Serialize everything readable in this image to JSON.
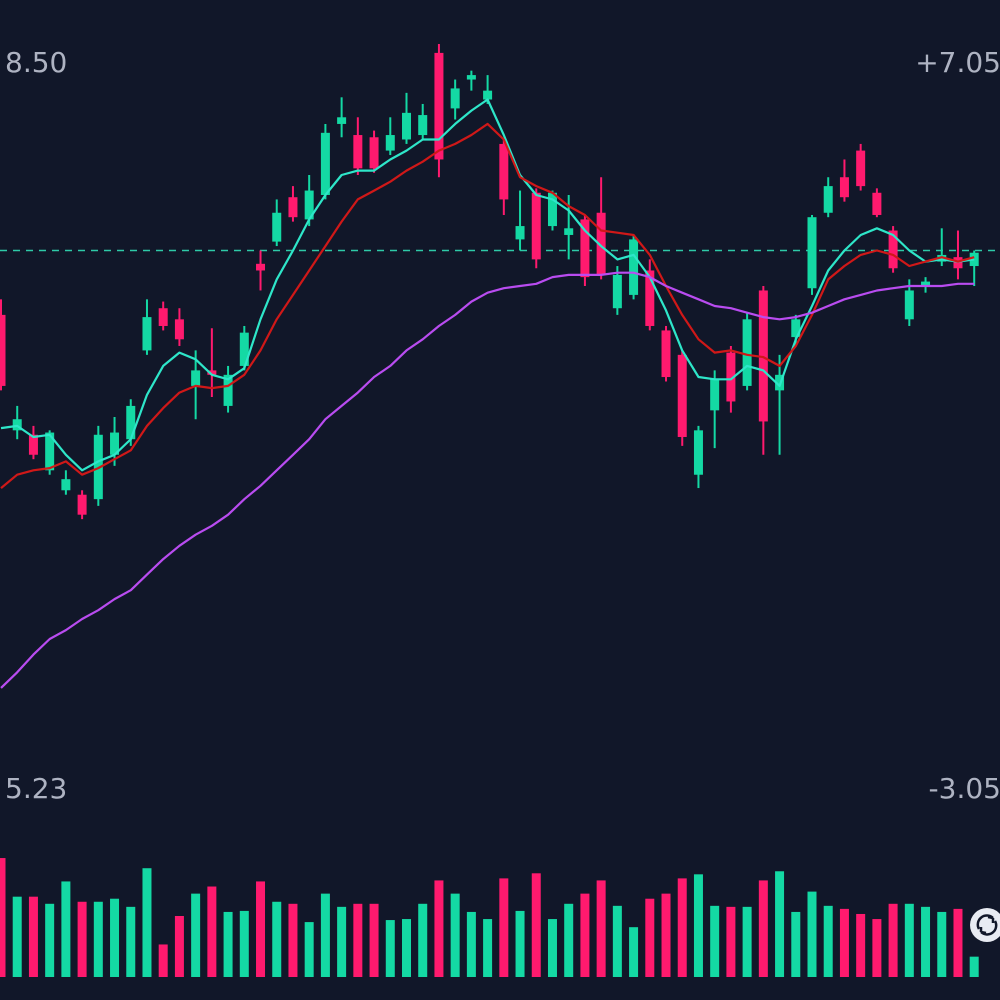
{
  "chart_data": {
    "type": "candlestick",
    "ylim": [
      5.23,
      8.5
    ],
    "yticks": [
      {
        "value": 8.5,
        "label": "8.50"
      },
      {
        "value": 5.23,
        "label": "5.23"
      }
    ],
    "y2lim": [
      -3.05,
      7.05
    ],
    "y2ticks": [
      {
        "value": 7.05,
        "label": "+7.05"
      },
      {
        "value": -3.05,
        "label": "-3.05"
      }
    ],
    "up_color": "#ff1a6e",
    "down_color": "#14d9a4",
    "open": [
      7.05,
      6.9,
      6.74,
      6.84,
      6.63,
      6.47,
      6.83,
      6.84,
      6.96,
      7.36,
      7.32,
      7.26,
      7.12,
      7.1,
      7.1,
      7.29,
      7.57,
      7.83,
      7.81,
      7.93,
      8.19,
      8.26,
      8.03,
      8.03,
      8.18,
      8.28,
      8.27,
      8.07,
      8.39,
      8.45,
      8.38,
      7.89,
      7.77,
      7.62,
      7.92,
      7.76,
      7.54,
      7.55,
      7.55,
      7.71,
      7.32,
      7.09,
      6.82,
      6.85,
      7.08,
      6.98,
      7.35,
      6.89,
      7.1,
      7.35,
      7.81,
      7.95,
      7.9,
      7.95,
      7.82,
      7.58,
      7.48,
      7.52,
      7.64,
      7.58,
      7.65
    ],
    "high": [
      7.44,
      6.96,
      6.87,
      6.85,
      6.67,
      6.58,
      6.87,
      6.91,
      6.99,
      7.44,
      7.43,
      7.4,
      7.21,
      7.31,
      7.14,
      7.32,
      7.66,
      7.89,
      7.95,
      8.0,
      8.23,
      8.35,
      8.26,
      8.2,
      8.26,
      8.37,
      8.32,
      8.59,
      8.43,
      8.47,
      8.45,
      8.16,
      7.93,
      7.94,
      7.93,
      7.91,
      7.82,
      7.99,
      7.59,
      7.73,
      7.62,
      7.32,
      7.21,
      6.87,
      7.12,
      7.23,
      7.38,
      7.5,
      7.19,
      7.37,
      7.82,
      7.99,
      8.07,
      8.14,
      7.94,
      7.77,
      7.53,
      7.54,
      7.76,
      7.75,
      7.66
    ],
    "low": [
      7.03,
      6.81,
      6.72,
      6.65,
      6.56,
      6.45,
      6.51,
      6.69,
      6.78,
      7.19,
      7.3,
      7.23,
      6.9,
      7.0,
      6.93,
      7.12,
      7.48,
      7.68,
      7.79,
      7.77,
      7.89,
      8.17,
      8.0,
      8.01,
      8.09,
      8.14,
      8.16,
      7.99,
      8.25,
      8.38,
      8.32,
      7.82,
      7.66,
      7.58,
      7.75,
      7.62,
      7.5,
      7.53,
      7.37,
      7.44,
      7.3,
      7.07,
      6.78,
      6.59,
      6.77,
      6.93,
      7.03,
      6.74,
      6.74,
      7.23,
      7.46,
      7.81,
      7.88,
      7.93,
      7.81,
      7.56,
      7.32,
      7.47,
      7.59,
      7.53,
      7.5
    ],
    "close": [
      7.37,
      6.85,
      6.83,
      6.67,
      6.58,
      6.56,
      6.54,
      6.74,
      6.81,
      7.21,
      7.4,
      7.35,
      7.05,
      7.12,
      6.96,
      7.14,
      7.6,
      7.7,
      7.9,
      7.8,
      7.91,
      8.23,
      8.18,
      8.17,
      8.11,
      8.16,
      8.18,
      8.55,
      8.3,
      8.43,
      8.34,
      8.14,
      7.71,
      7.92,
      7.77,
      7.73,
      7.8,
      7.83,
      7.4,
      7.46,
      7.57,
      7.3,
      7.19,
      6.65,
      6.94,
      7.2,
      7.05,
      7.48,
      7.03,
      7.27,
      7.49,
      7.83,
      7.99,
      8.11,
      7.92,
      7.75,
      7.35,
      7.5,
      7.61,
      7.63,
      7.59
    ],
    "moving_averages": [
      {
        "color": "#2ee6c9",
        "values": [
          6.86,
          6.87,
          6.82,
          6.83,
          6.74,
          6.67,
          6.71,
          6.74,
          6.81,
          7.01,
          7.14,
          7.2,
          7.17,
          7.1,
          7.08,
          7.13,
          7.35,
          7.53,
          7.66,
          7.8,
          7.91,
          8.0,
          8.02,
          8.02,
          8.07,
          8.11,
          8.16,
          8.16,
          8.23,
          8.29,
          8.34,
          8.18,
          8.0,
          7.91,
          7.89,
          7.84,
          7.75,
          7.68,
          7.62,
          7.64,
          7.54,
          7.39,
          7.21,
          7.09,
          7.08,
          7.08,
          7.14,
          7.12,
          7.05,
          7.26,
          7.41,
          7.57,
          7.66,
          7.73,
          7.76,
          7.73,
          7.66,
          7.61,
          7.62,
          7.61,
          7.62
        ]
      },
      {
        "color": "#d01818",
        "values": [
          6.59,
          6.65,
          6.67,
          6.68,
          6.71,
          6.65,
          6.68,
          6.72,
          6.76,
          6.87,
          6.95,
          7.02,
          7.05,
          7.04,
          7.05,
          7.1,
          7.21,
          7.35,
          7.46,
          7.57,
          7.68,
          7.79,
          7.89,
          7.93,
          7.97,
          8.02,
          8.06,
          8.11,
          8.14,
          8.18,
          8.23,
          8.16,
          7.99,
          7.95,
          7.92,
          7.86,
          7.82,
          7.75,
          7.74,
          7.73,
          7.64,
          7.5,
          7.37,
          7.26,
          7.2,
          7.21,
          7.19,
          7.18,
          7.14,
          7.23,
          7.37,
          7.53,
          7.59,
          7.64,
          7.66,
          7.64,
          7.59,
          7.61,
          7.63,
          7.61,
          7.63
        ]
      },
      {
        "color": "#b94cf0",
        "values": [
          5.69,
          5.76,
          5.84,
          5.91,
          5.95,
          6.0,
          6.04,
          6.09,
          6.13,
          6.2,
          6.27,
          6.33,
          6.38,
          6.42,
          6.47,
          6.54,
          6.6,
          6.67,
          6.74,
          6.81,
          6.9,
          6.96,
          7.02,
          7.09,
          7.14,
          7.21,
          7.26,
          7.32,
          7.37,
          7.43,
          7.47,
          7.49,
          7.5,
          7.51,
          7.54,
          7.55,
          7.55,
          7.55,
          7.56,
          7.56,
          7.54,
          7.5,
          7.47,
          7.44,
          7.41,
          7.4,
          7.38,
          7.36,
          7.35,
          7.36,
          7.38,
          7.41,
          7.44,
          7.46,
          7.48,
          7.49,
          7.5,
          7.5,
          7.5,
          7.51,
          7.51
        ]
      }
    ],
    "reference_line": 7.66,
    "volume": [
      117,
      79,
      79,
      72,
      94,
      74,
      74,
      77,
      69,
      107,
      32,
      60,
      82,
      89,
      64,
      65,
      94,
      74,
      72,
      54,
      82,
      69,
      72,
      72,
      56,
      57,
      72,
      95,
      82,
      64,
      57,
      97,
      65,
      102,
      57,
      72,
      82,
      95,
      70,
      49,
      77,
      82,
      97,
      101,
      70,
      69,
      69,
      95,
      104,
      64,
      84,
      70,
      67,
      62,
      57,
      72,
      72,
      69,
      64,
      67,
      20
    ],
    "volume_ylim": [
      0,
      120
    ]
  }
}
